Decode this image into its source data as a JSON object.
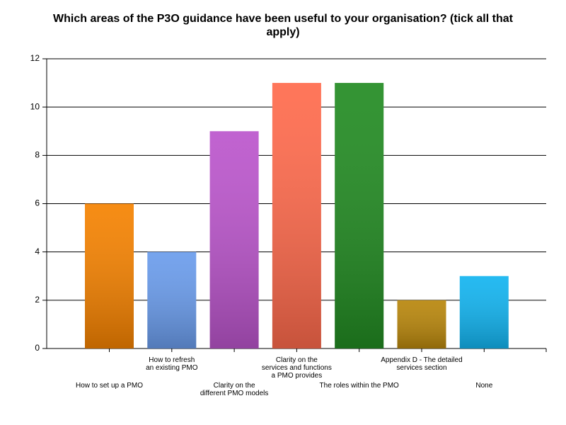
{
  "chart_data": {
    "type": "bar",
    "title": "Which areas of the P3O guidance have been useful to your organisation? (tick all that apply)",
    "categories": [
      "How to set up a PMO",
      "How to refresh\nan existing PMO",
      "Clarity on the\ndifferent PMO models",
      "Clarity on the\nservices and functions\na PMO provides",
      "The roles within the PMO",
      "Appendix D - The detailed\nservices section",
      "None"
    ],
    "values": [
      6,
      4,
      9,
      11,
      11,
      2,
      3
    ],
    "colors": [
      "#f58200",
      "#6a9cec",
      "#bb55cc",
      "#ff6a4c",
      "#228b22",
      "#b8860b",
      "#12b4f0"
    ],
    "ylim": [
      0,
      12
    ],
    "yticks": [
      0,
      2,
      4,
      6,
      8,
      10,
      12
    ],
    "grid": true
  }
}
